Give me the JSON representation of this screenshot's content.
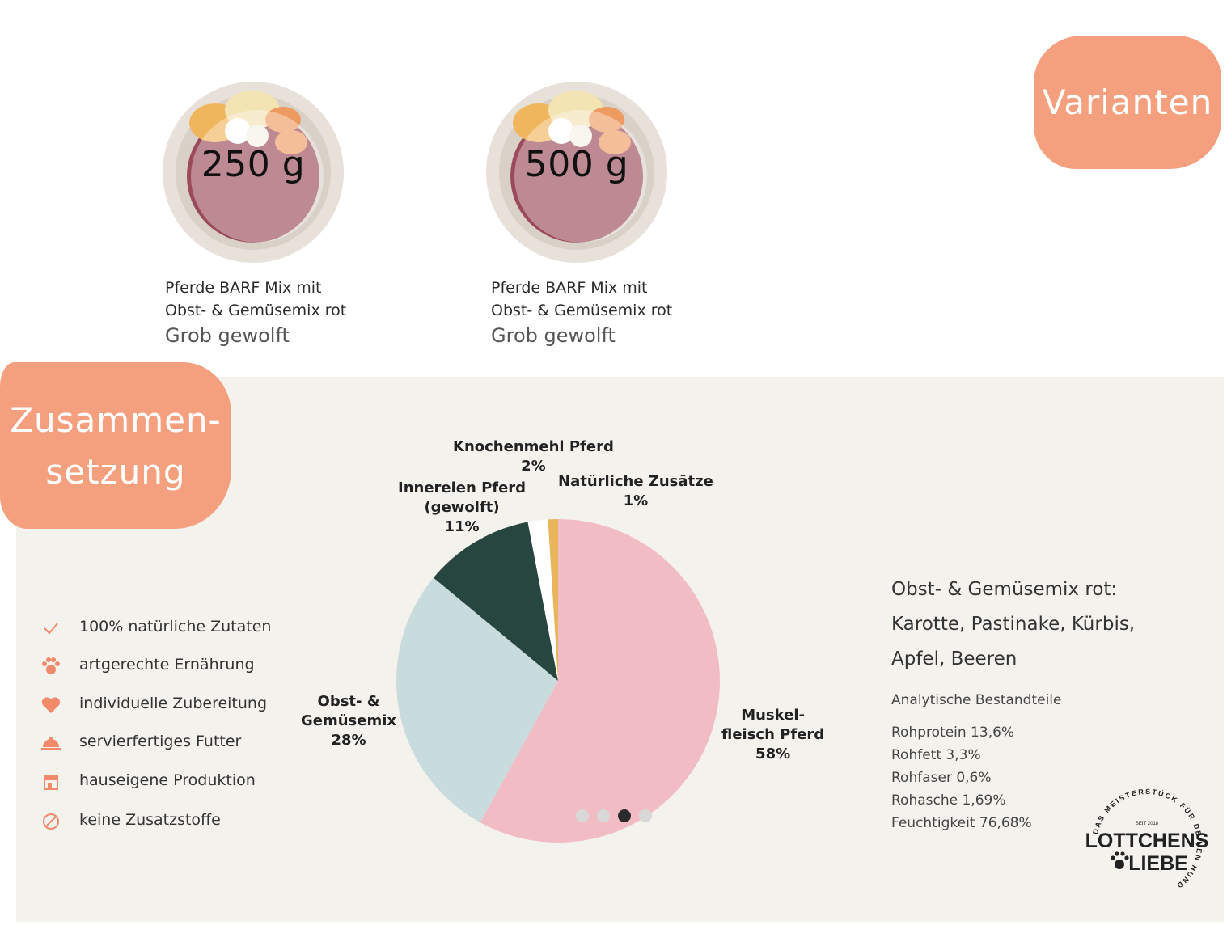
{
  "variants": [
    {
      "weight": "250 g",
      "line1": "Pferde BARF Mix mit",
      "line2": "Obst- & Gemüsemix rot",
      "line3": "Grob gewolft"
    },
    {
      "weight": "500 g",
      "line1": "Pferde BARF Mix mit",
      "line2": "Obst- & Gemüsemix rot",
      "line3": "Grob gewolft"
    }
  ],
  "badges": {
    "varianten": "Varianten",
    "zusammensetzung_line1": "Zusammen-",
    "zusammensetzung_line2": "setzung"
  },
  "features": [
    {
      "icon": "check-icon",
      "label": "100% natürliche Zutaten"
    },
    {
      "icon": "paw-icon",
      "label": "artgerechte Ernährung"
    },
    {
      "icon": "heart-icon",
      "label": "individuelle Zubereitung"
    },
    {
      "icon": "cloche-icon",
      "label": "servierfertiges Futter"
    },
    {
      "icon": "store-icon",
      "label": "hauseigene Produktion"
    },
    {
      "icon": "no-icon",
      "label": "keine Zusatzstoffe"
    }
  ],
  "chart_data": {
    "type": "pie",
    "slices": [
      {
        "label": "Muskel- fleisch Pferd",
        "value": 58,
        "color": "#f2bcc5"
      },
      {
        "label": "Obst- & Gemüsemix",
        "value": 28,
        "color": "#c9dcdd"
      },
      {
        "label": "Innereien Pferd (gewolft)",
        "value": 11,
        "color": "#284640"
      },
      {
        "label": "Knochenmehl Pferd",
        "value": 2,
        "color": "#ffffff"
      },
      {
        "label": "Natürliche Zusätze",
        "value": 1,
        "color": "#e8b55a"
      }
    ],
    "labels": {
      "muskel_l1": "Muskel-",
      "muskel_l2": "fleisch Pferd",
      "muskel_pct": "58%",
      "obst_l1": "Obst- &",
      "obst_l2": "Gemüsemix",
      "obst_pct": "28%",
      "inner_l1": "Innereien Pferd",
      "inner_l2": "(gewolft)",
      "inner_pct": "11%",
      "knochen_l1": "Knochenmehl Pferd",
      "knochen_pct": "2%",
      "natur_l1": "Natürliche Zusätze",
      "natur_pct": "1%"
    }
  },
  "mix": {
    "title": "Obst- & Gemüsemix rot:",
    "line2": "Karotte, Pastinake, Kürbis,",
    "line3": "Apfel, Beeren"
  },
  "analytics": {
    "title": "Analytische Bestandteile",
    "items": [
      "Rohprotein 13,6%",
      "Rohfett 3,3%",
      "Rohfaser 0,6%",
      "Rohasche 1,69%",
      "Feuchtigkeit 76,68%"
    ]
  },
  "carousel": {
    "count": 4,
    "active": 3
  },
  "logo": {
    "arc_text": "DAS MEISTERSTÜCK FÜR DEINEN HUND",
    "seit": "SEIT 2018",
    "line1": "LOTTCHENS",
    "line2": "LIEBE"
  },
  "colors": {
    "accent": "#f4a07f",
    "panel": "#f4f2ed",
    "icon": "#f08a6a"
  }
}
